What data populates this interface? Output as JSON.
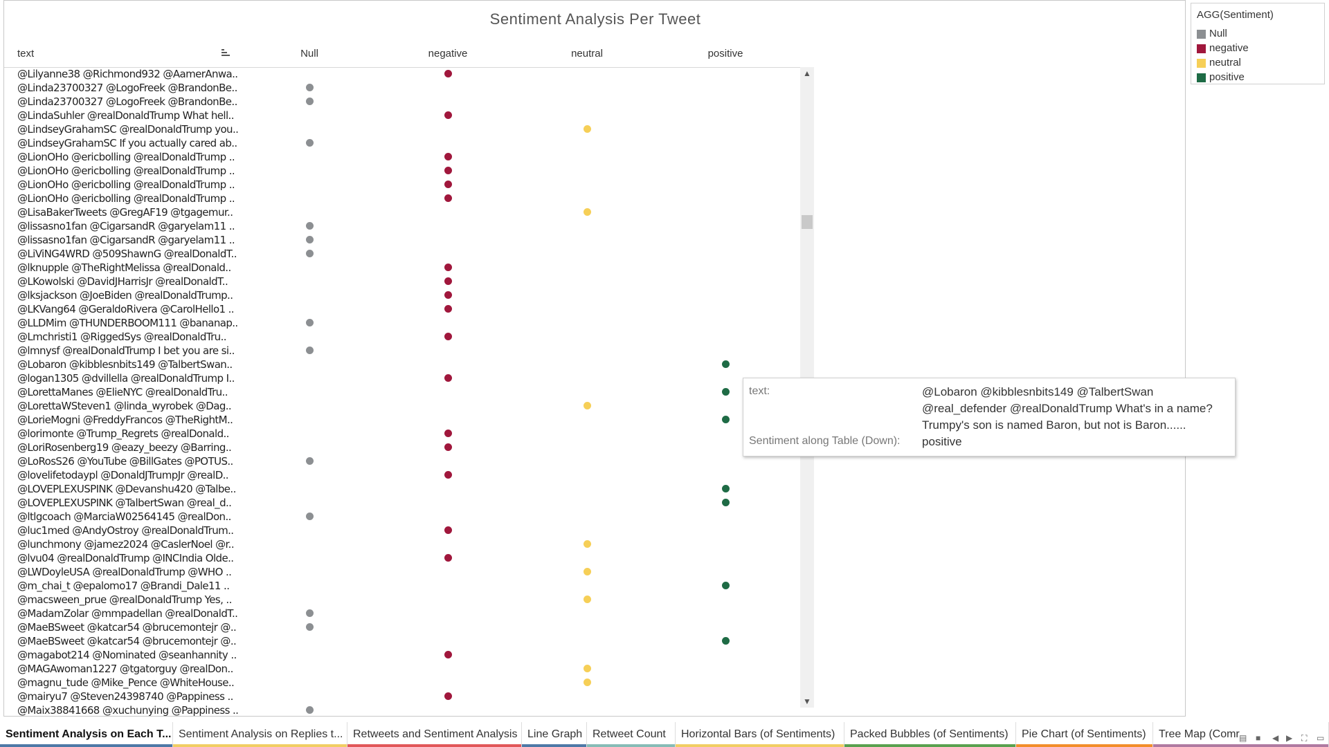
{
  "title": "Sentiment Analysis Per Tweet",
  "columns": {
    "text": "text",
    "null": "Null",
    "negative": "negative",
    "neutral": "neutral",
    "positive": "positive"
  },
  "legend": {
    "title": "AGG(Sentiment)",
    "items": [
      {
        "label": "Null",
        "color": "#8c8f92"
      },
      {
        "label": "negative",
        "color": "#a0173c"
      },
      {
        "label": "neutral",
        "color": "#f6cf57"
      },
      {
        "label": "positive",
        "color": "#1e6b45"
      }
    ]
  },
  "rows": [
    {
      "text": "@Lilyanne38 @Richmond932 @AamerAnwa..",
      "sentiment": "negative"
    },
    {
      "text": "@Linda23700327 @LogoFreek @BrandonBe..",
      "sentiment": "Null"
    },
    {
      "text": "@Linda23700327 @LogoFreek @BrandonBe..",
      "sentiment": "Null"
    },
    {
      "text": "@LindaSuhler @realDonaldTrump What hell..",
      "sentiment": "negative"
    },
    {
      "text": "@LindseyGrahamSC @realDonaldTrump you..",
      "sentiment": "neutral"
    },
    {
      "text": "@LindseyGrahamSC If you actually cared ab..",
      "sentiment": "Null"
    },
    {
      "text": "@LionOHo @ericbolling @realDonaldTrump ..",
      "sentiment": "negative"
    },
    {
      "text": "@LionOHo @ericbolling @realDonaldTrump ..",
      "sentiment": "negative"
    },
    {
      "text": "@LionOHo @ericbolling @realDonaldTrump ..",
      "sentiment": "negative"
    },
    {
      "text": "@LionOHo @ericbolling @realDonaldTrump ..",
      "sentiment": "negative"
    },
    {
      "text": "@LisaBakerTweets @GregAF19 @tgagemur..",
      "sentiment": "neutral"
    },
    {
      "text": "@lissasno1fan @CigarsandR @garyelam11 ..",
      "sentiment": "Null"
    },
    {
      "text": "@lissasno1fan @CigarsandR @garyelam11 ..",
      "sentiment": "Null"
    },
    {
      "text": "@LiViNG4WRD @509ShawnG @realDonaldT..",
      "sentiment": "Null"
    },
    {
      "text": "@lknupple @TheRightMelissa @realDonald..",
      "sentiment": "negative"
    },
    {
      "text": "@LKowolski @DavidJHarrisJr @realDonaldT..",
      "sentiment": "negative"
    },
    {
      "text": "@lksjackson @JoeBiden @realDonaldTrump..",
      "sentiment": "negative"
    },
    {
      "text": "@LKVang64 @GeraldoRivera @CarolHello1 ..",
      "sentiment": "negative"
    },
    {
      "text": "@LLDMim @THUNDERBOOM111 @bananap..",
      "sentiment": "Null"
    },
    {
      "text": "@Lmchristi1 @RiggedSys @realDonaldTru..",
      "sentiment": "negative"
    },
    {
      "text": "@lmnysf @realDonaldTrump I bet you are si..",
      "sentiment": "Null"
    },
    {
      "text": "@Lobaron @kibblesnbits149 @TalbertSwan..",
      "sentiment": "positive"
    },
    {
      "text": "@logan1305 @dvillella @realDonaldTrump I..",
      "sentiment": "negative"
    },
    {
      "text": "@LorettaManes @ElieNYC @realDonaldTru..",
      "sentiment": "positive"
    },
    {
      "text": "@LorettaWSteven1 @linda_wyrobek @Dag..",
      "sentiment": "neutral"
    },
    {
      "text": "@LorieMogni @FreddyFrancos @TheRightM..",
      "sentiment": "positive"
    },
    {
      "text": "@lorimonte @Trump_Regrets @realDonald..",
      "sentiment": "negative"
    },
    {
      "text": "@LoriRosenberg19 @eazy_beezy @Barring..",
      "sentiment": "negative"
    },
    {
      "text": "@LoRosS26 @YouTube @BillGates @POTUS..",
      "sentiment": "Null"
    },
    {
      "text": "@lovelifetodaypl @DonaldJTrumpJr @realD..",
      "sentiment": "negative"
    },
    {
      "text": "@LOVEPLEXUSPINK @Devanshu420 @Talbe..",
      "sentiment": "positive"
    },
    {
      "text": "@LOVEPLEXUSPINK @TalbertSwan @real_d..",
      "sentiment": "positive"
    },
    {
      "text": "@ltlgcoach @MarciaW02564145 @realDon..",
      "sentiment": "Null"
    },
    {
      "text": "@luc1med @AndyOstroy @realDonaldTrum..",
      "sentiment": "negative"
    },
    {
      "text": "@lunchmony @jamez2024 @CaslerNoel @r..",
      "sentiment": "neutral"
    },
    {
      "text": "@lvu04 @realDonaldTrump @INCIndia Olde..",
      "sentiment": "negative"
    },
    {
      "text": "@LWDoyleUSA @realDonaldTrump @WHO ..",
      "sentiment": "neutral"
    },
    {
      "text": "@m_chai_t @epalomo17 @Brandi_Dale11 ..",
      "sentiment": "positive"
    },
    {
      "text": "@macsween_prue @realDonaldTrump Yes, ..",
      "sentiment": "neutral"
    },
    {
      "text": "@MadamZolar @mmpadellan @realDonaldT..",
      "sentiment": "Null"
    },
    {
      "text": "@MaeBSweet @katcar54 @brucemontejr @..",
      "sentiment": "Null"
    },
    {
      "text": "@MaeBSweet @katcar54 @brucemontejr @..",
      "sentiment": "positive"
    },
    {
      "text": "@magabot214 @Nominated @seanhannity ..",
      "sentiment": "negative"
    },
    {
      "text": "@MAGAwoman1227 @tgatorguy @realDon..",
      "sentiment": "neutral"
    },
    {
      "text": "@magnu_tude @Mike_Pence @WhiteHouse..",
      "sentiment": "neutral"
    },
    {
      "text": "@mairyu7 @Steven24398740 @Pappiness ..",
      "sentiment": "negative"
    },
    {
      "text": "@Maix38841668 @xuchunying @Pappiness ..",
      "sentiment": "Null"
    }
  ],
  "tooltip": {
    "text_label": "text:",
    "text_lines": [
      "@Lobaron @kibblesnbits149 @TalbertSwan",
      "@real_defender @realDonaldTrump What's in a name?",
      "Trumpy's son is named Baron, but not is Baron......"
    ],
    "sentiment_label": "Sentiment along Table (Down):",
    "sentiment_value": "positive"
  },
  "tabs": [
    {
      "label": "Sentiment Analysis on Each T...",
      "color": "#4e79a7",
      "active": true
    },
    {
      "label": "Sentiment Analysis on Replies t...",
      "color": "#f1ce63",
      "active": false
    },
    {
      "label": "Retweets and Sentiment Analysis",
      "color": "#e15759",
      "active": false
    },
    {
      "label": "Line Graph",
      "color": "#4e79a7",
      "active": false
    },
    {
      "label": "Retweet Count",
      "color": "#86bcb6",
      "active": false
    },
    {
      "label": "Horizontal Bars (of Sentiments)",
      "color": "#f1ce63",
      "active": false
    },
    {
      "label": "Packed Bubbles (of Sentiments)",
      "color": "#59a14f",
      "active": false
    },
    {
      "label": "Pie Chart (of Sentiments)",
      "color": "#f28e2b",
      "active": false
    },
    {
      "label": "Tree Map (Comr",
      "color": "#b07aa1",
      "active": false
    }
  ]
}
